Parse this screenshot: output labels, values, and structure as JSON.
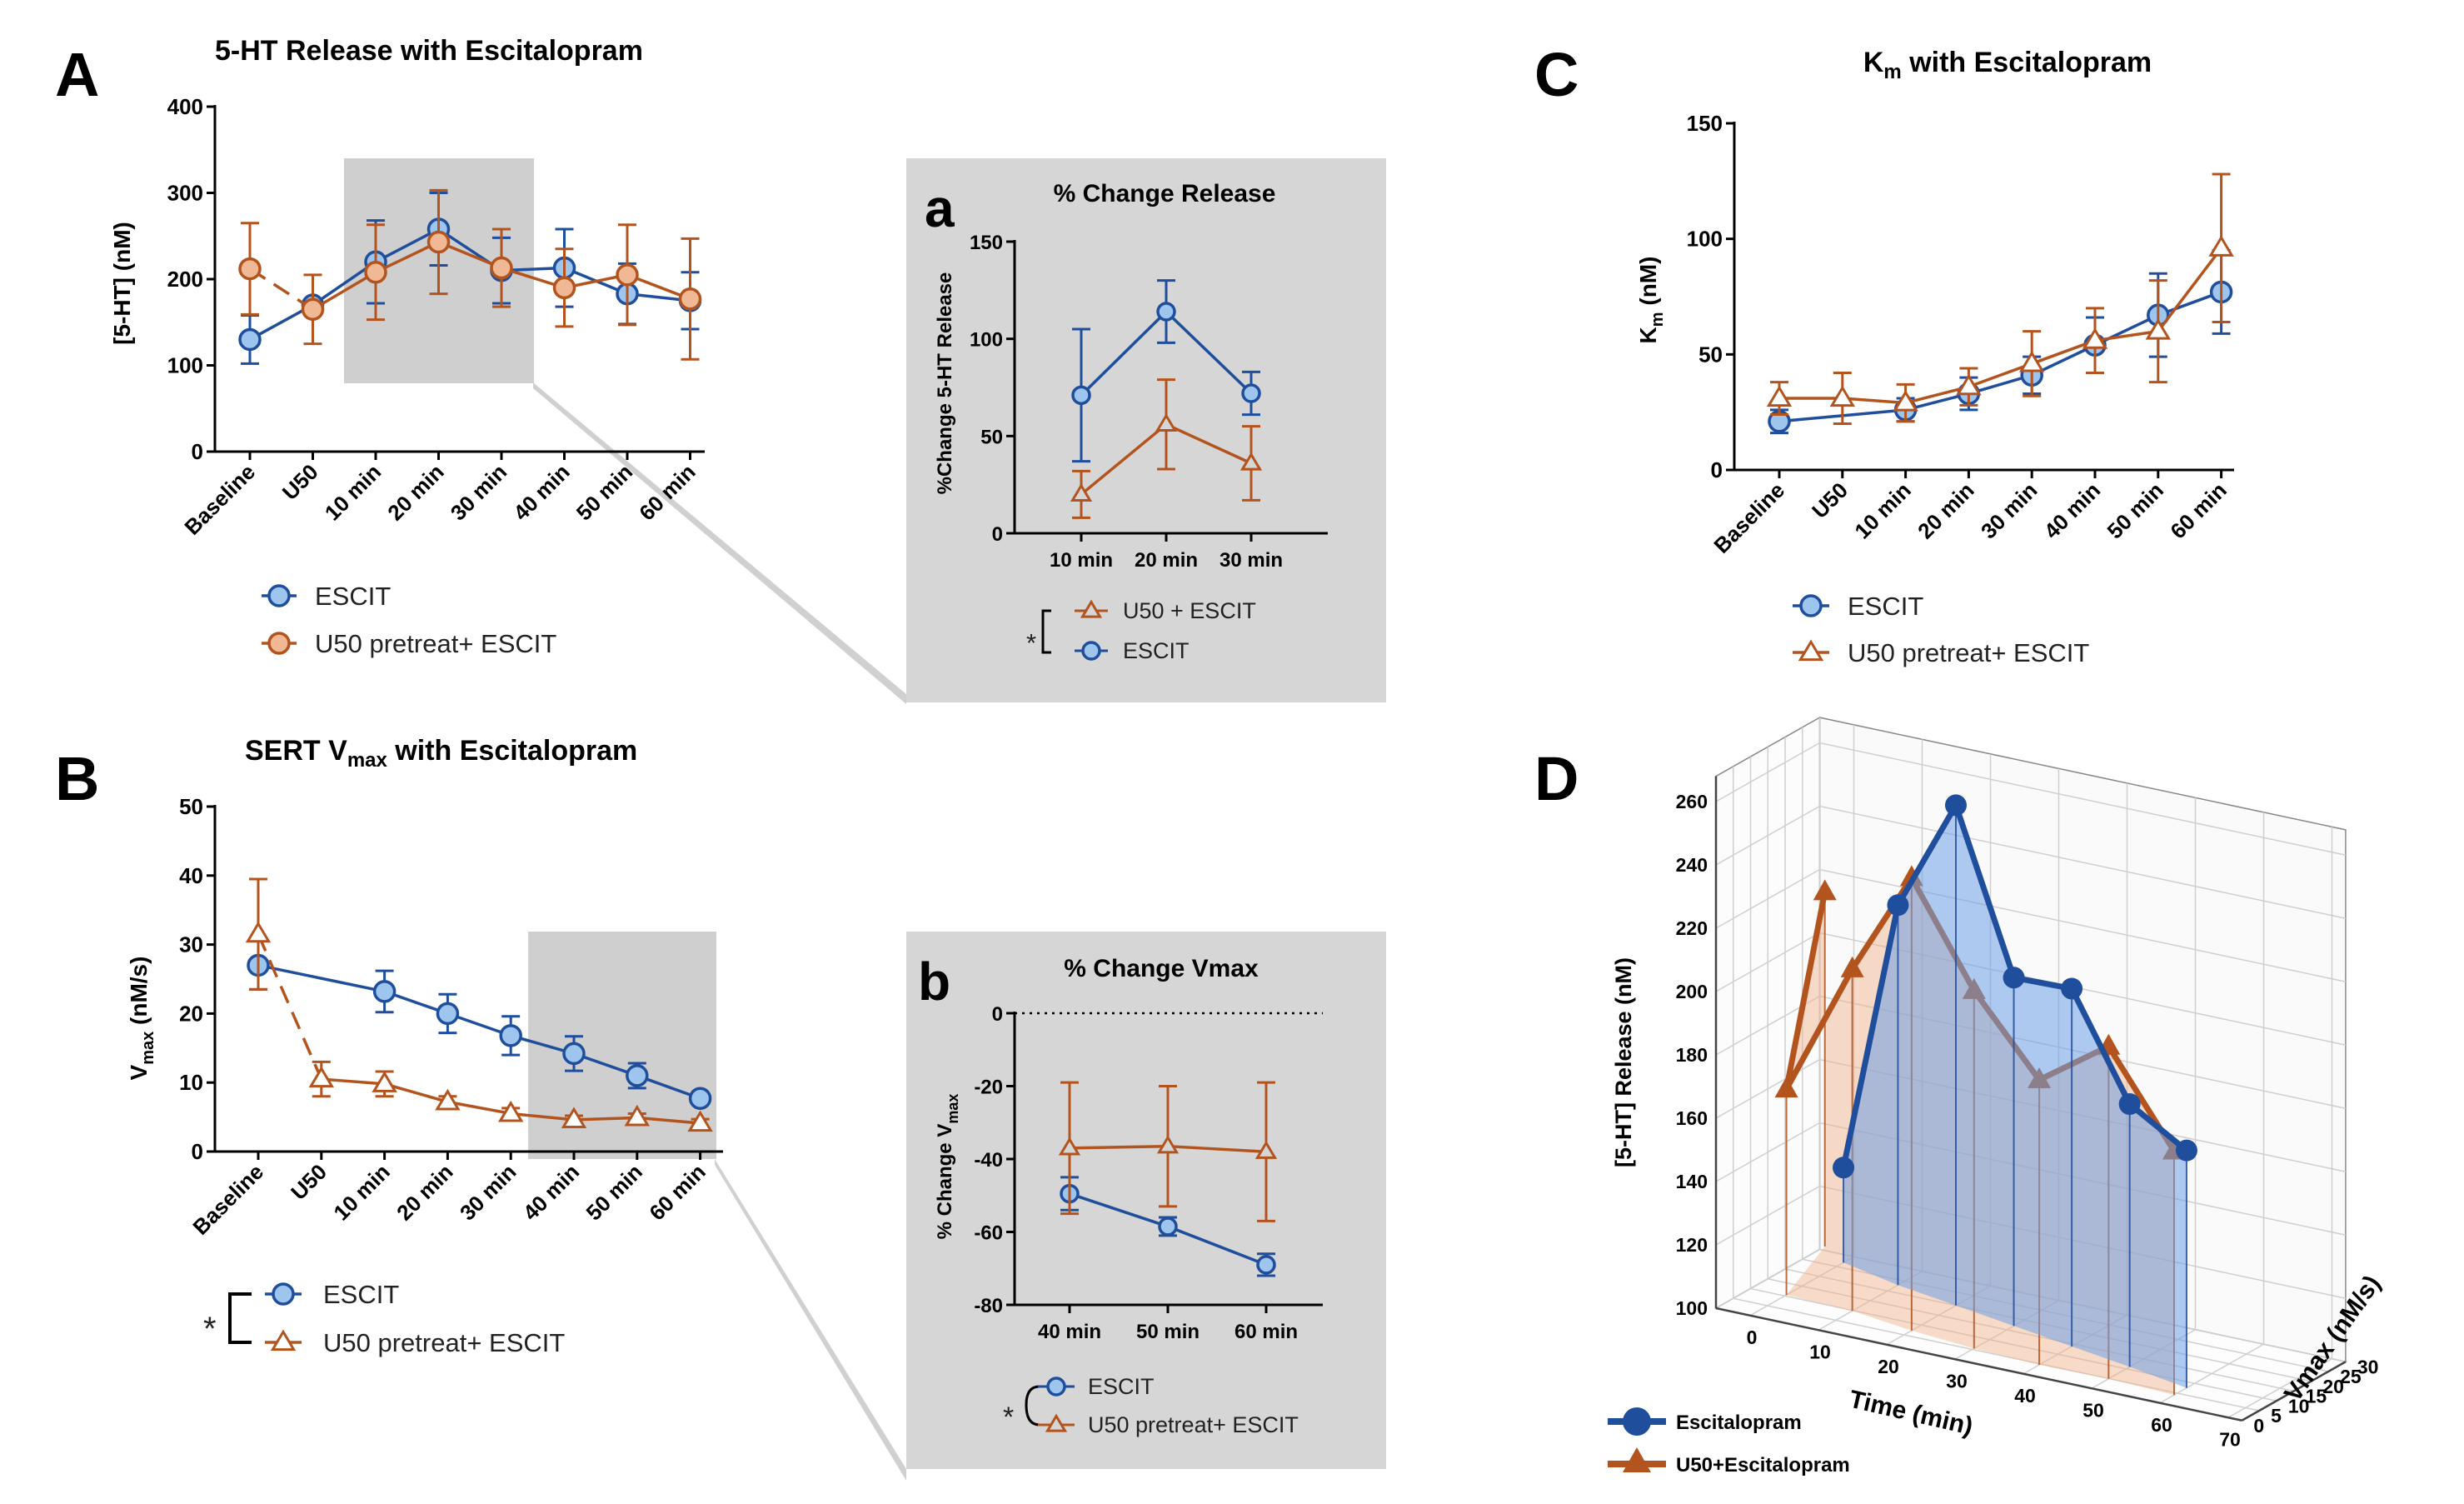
{
  "figure": {
    "panels": {
      "A": {
        "letter": "A"
      },
      "a": {
        "letter": "a"
      },
      "B": {
        "letter": "B"
      },
      "b": {
        "letter": "b"
      },
      "C": {
        "letter": "C"
      },
      "D": {
        "letter": "D"
      }
    },
    "colors": {
      "escit": "#1f4e9c",
      "escit_fill": "#9ec5ee",
      "u50": "#b3541e",
      "u50_fill": "#f0b894",
      "inset_bg": "#d6d6d6"
    },
    "significance": "*"
  },
  "chart_data": [
    {
      "id": "A",
      "type": "line",
      "title": "5-HT Release with Escitalopram",
      "ylabel": "[5-HT] (nM)",
      "ylim": [
        0,
        400
      ],
      "yticks": [
        0,
        100,
        200,
        300,
        400
      ],
      "categories": [
        "Baseline",
        "U50",
        "10 min",
        "20 min",
        "30 min",
        "40 min",
        "50 min",
        "60 min"
      ],
      "series": [
        {
          "name": "ESCIT",
          "marker": "circle",
          "values": [
            130,
            170,
            220,
            258,
            210,
            213,
            183,
            175
          ],
          "errors": [
            28,
            0,
            48,
            42,
            38,
            45,
            35,
            33
          ]
        },
        {
          "name": "U50 pretreat+ ESCIT",
          "marker": "circle",
          "values": [
            212,
            165,
            208,
            243,
            213,
            190,
            205,
            177
          ],
          "errors": [
            53,
            40,
            55,
            60,
            45,
            45,
            58,
            70
          ]
        }
      ],
      "legend": [
        "ESCIT",
        "U50 pretreat+ ESCIT"
      ]
    },
    {
      "id": "a",
      "type": "line",
      "title": "% Change Release",
      "ylabel": "%Change 5-HT Release",
      "ylim": [
        0,
        150
      ],
      "yticks": [
        0,
        50,
        100,
        150
      ],
      "categories": [
        "10 min",
        "20 min",
        "30 min"
      ],
      "series": [
        {
          "name": "ESCIT",
          "marker": "circle",
          "values": [
            71,
            114,
            72
          ],
          "errors": [
            34,
            16,
            11
          ]
        },
        {
          "name": "U50 + ESCIT",
          "marker": "triangle",
          "values": [
            20,
            56,
            36
          ],
          "errors": [
            12,
            23,
            19
          ]
        }
      ],
      "legend": [
        "U50 + ESCIT",
        "ESCIT"
      ]
    },
    {
      "id": "B",
      "type": "line",
      "title_main": "SERT V",
      "title_sub": "max",
      "title_rest": " with Escitalopram",
      "ylabel_main": "V",
      "ylabel_sub": "max",
      "ylabel_rest": " (nM/s)",
      "ylim": [
        0,
        50
      ],
      "yticks": [
        0,
        10,
        20,
        30,
        40,
        50
      ],
      "categories": [
        "Baseline",
        "U50",
        "10 min",
        "20 min",
        "30 min",
        "40 min",
        "50 min",
        "60 min"
      ],
      "series": [
        {
          "name": "ESCIT",
          "marker": "circle",
          "values": [
            27,
            null,
            23.2,
            20,
            16.8,
            14.2,
            11,
            7.7
          ],
          "errors": [
            3.5,
            0,
            3,
            2.8,
            2.8,
            2.5,
            1.8,
            0.8
          ]
        },
        {
          "name": "U50 pretreat+ ESCIT",
          "marker": "triangle",
          "values": [
            31.5,
            10.5,
            9.8,
            7.2,
            5.5,
            4.6,
            4.9,
            4.1
          ],
          "errors": [
            8,
            2.5,
            1.8,
            0.8,
            0.8,
            0.6,
            0.6,
            0.6
          ]
        }
      ],
      "legend": [
        "ESCIT",
        "U50 pretreat+ ESCIT"
      ]
    },
    {
      "id": "b",
      "type": "line",
      "title": "% Change  Vmax",
      "ylabel_main": "% Change V",
      "ylabel_sub": "max",
      "ylim": [
        -80,
        0
      ],
      "yticks": [
        0,
        -20,
        -40,
        -60,
        -80
      ],
      "categories": [
        "40 min",
        "50 min",
        "60 min"
      ],
      "series": [
        {
          "name": "ESCIT",
          "marker": "circle",
          "values": [
            -49.5,
            -58.5,
            -69
          ],
          "errors": [
            4.5,
            2.5,
            3
          ]
        },
        {
          "name": "U50 pretreat+ ESCIT",
          "marker": "triangle",
          "values": [
            -37,
            -36.5,
            -38
          ],
          "errors": [
            18,
            16.5,
            19
          ]
        }
      ],
      "legend": [
        "ESCIT",
        "U50 pretreat+ ESCIT"
      ]
    },
    {
      "id": "C",
      "type": "line",
      "title_main": "K",
      "title_sub": "m",
      "title_rest": " with Escitalopram",
      "ylabel_main": "K",
      "ylabel_sub": "m",
      "ylabel_rest": " (nM)",
      "ylim": [
        0,
        150
      ],
      "yticks": [
        0,
        50,
        100,
        150
      ],
      "categories": [
        "Baseline",
        "U50",
        "10 min",
        "20 min",
        "30 min",
        "40 min",
        "50 min",
        "60 min"
      ],
      "series": [
        {
          "name": "ESCIT",
          "marker": "circle",
          "values": [
            21,
            null,
            26,
            33,
            41,
            54,
            67,
            77
          ],
          "errors": [
            5,
            0,
            5,
            7,
            8,
            12,
            18,
            18
          ]
        },
        {
          "name": "U50 pretreat+ ESCIT",
          "marker": "triangle",
          "values": [
            31,
            31,
            29,
            36,
            46,
            56,
            60,
            96
          ],
          "errors": [
            7,
            11,
            8,
            8,
            14,
            14,
            22,
            32
          ]
        }
      ],
      "legend": [
        "ESCIT",
        "U50 pretreat+ ESCIT"
      ]
    },
    {
      "id": "D",
      "type": "line3d",
      "zlabel": "[5-HT] Release (nM)",
      "xlabel": "Time (min)",
      "ylabel": "Vmax (nM/s)",
      "xticks": [
        0,
        10,
        20,
        30,
        40,
        50,
        60,
        70
      ],
      "yticks": [
        0,
        5,
        10,
        15,
        20,
        25,
        30
      ],
      "zticks": [
        100,
        120,
        140,
        160,
        180,
        200,
        220,
        240,
        260
      ],
      "xlim": [
        -5,
        72
      ],
      "ylim": [
        0,
        30
      ],
      "zlim": [
        100,
        268
      ],
      "series": [
        {
          "name": "Escitalopram",
          "marker": "circle",
          "points": [
            [
              0,
              27,
              130
            ],
            [
              10,
              23,
              220
            ],
            [
              20,
              20,
              258
            ],
            [
              30,
              17,
              210
            ],
            [
              40,
              14,
              213
            ],
            [
              50,
              11,
              183
            ],
            [
              60,
              7.7,
              175
            ]
          ]
        },
        {
          "name": "U50+Escitalopram",
          "marker": "triangle",
          "points": [
            [
              -5,
              31.5,
              212
            ],
            [
              0,
              10.5,
              165
            ],
            [
              10,
              9.8,
              208
            ],
            [
              20,
              7.2,
              243
            ],
            [
              30,
              5.5,
              213
            ],
            [
              40,
              4.6,
              190
            ],
            [
              50,
              4.9,
              205
            ],
            [
              60,
              4.1,
              177
            ]
          ]
        }
      ],
      "legend": [
        "Escitalopram",
        "U50+Escitalopram"
      ]
    }
  ]
}
